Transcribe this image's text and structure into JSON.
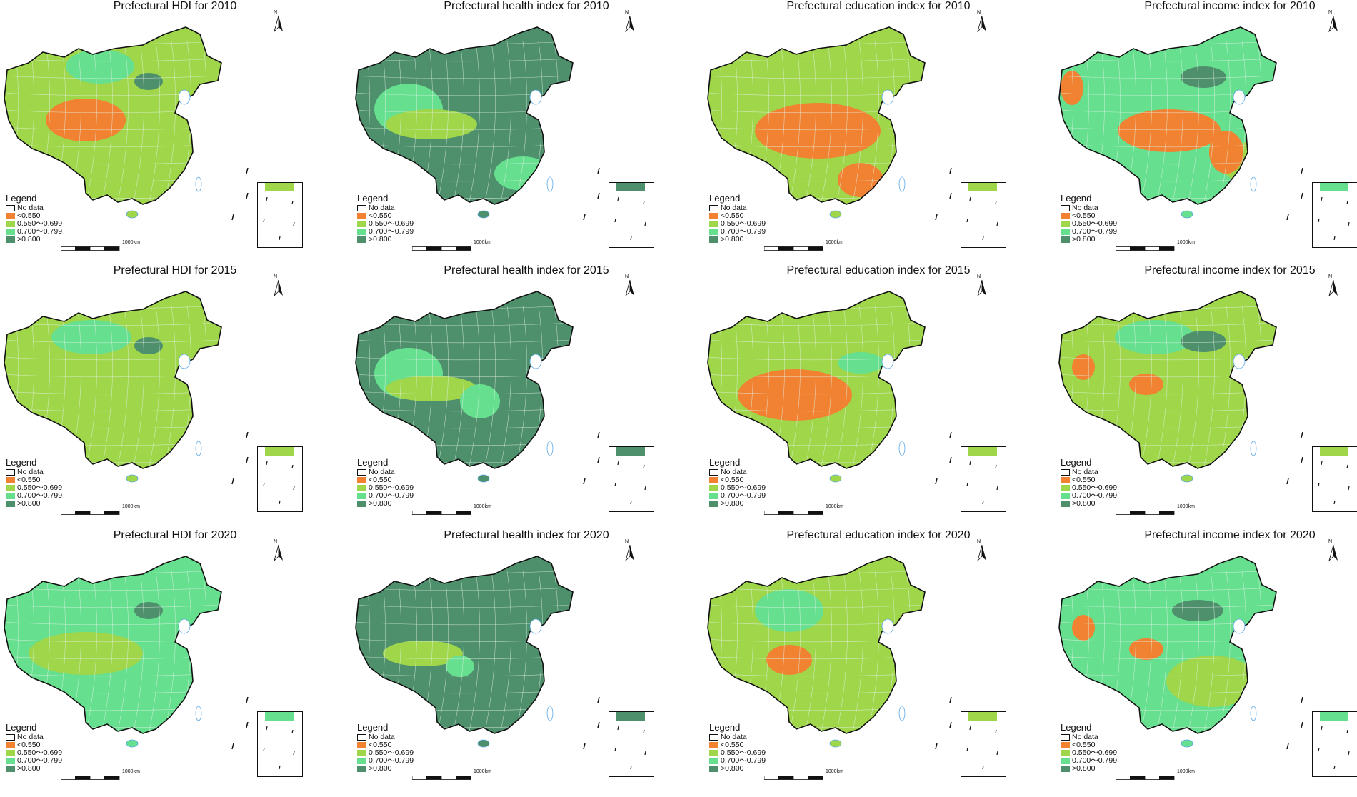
{
  "colors": {
    "no_data": "#ffffff",
    "lt_0550": "#f08232",
    "r_0550_0699": "#9fd64a",
    "r_0700_0799": "#66df8f",
    "gt_0800": "#4e8f6c",
    "border": "#111111",
    "prefecture_line": "#e7f3ea",
    "water": "#5aa6e6"
  },
  "legend": {
    "title": "Legend",
    "items": [
      {
        "label": "No data",
        "color_key": "no_data"
      },
      {
        "label": "<0.550",
        "color_key": "lt_0550"
      },
      {
        "label": "0.550～0.699",
        "color_key": "r_0550_0699"
      },
      {
        "label": "0.700～0.799",
        "color_key": "r_0700_0799"
      },
      {
        "label": ">0.800",
        "color_key": "gt_0800"
      }
    ]
  },
  "scale_bar_label": "1000km",
  "north_label": "N",
  "panels": [
    {
      "title": "Prefectural HDI for 2010",
      "base": "r_0550_0699",
      "blobs": [
        [
          "lt_0550",
          0.3,
          0.5,
          0.14,
          0.1
        ],
        [
          "r_0700_0799",
          0.35,
          0.25,
          0.12,
          0.08
        ],
        [
          "gt_0800",
          0.52,
          0.32,
          0.05,
          0.04
        ],
        [
          "r_0700_0799",
          0.8,
          0.55,
          0.07,
          0.18
        ]
      ]
    },
    {
      "title": "Prefectural health index for 2010",
      "base": "gt_0800",
      "blobs": [
        [
          "r_0700_0799",
          0.2,
          0.45,
          0.12,
          0.12
        ],
        [
          "r_0550_0699",
          0.28,
          0.52,
          0.16,
          0.07
        ],
        [
          "r_0700_0799",
          0.6,
          0.75,
          0.1,
          0.08
        ]
      ]
    },
    {
      "title": "Prefectural education index for 2010",
      "base": "r_0550_0699",
      "blobs": [
        [
          "lt_0550",
          0.4,
          0.55,
          0.22,
          0.13
        ],
        [
          "lt_0550",
          0.55,
          0.78,
          0.08,
          0.08
        ],
        [
          "r_0700_0799",
          0.85,
          0.4,
          0.05,
          0.08
        ]
      ]
    },
    {
      "title": "Prefectural income index for 2010",
      "base": "r_0700_0799",
      "blobs": [
        [
          "lt_0550",
          0.4,
          0.55,
          0.18,
          0.1
        ],
        [
          "lt_0550",
          0.06,
          0.35,
          0.04,
          0.08
        ],
        [
          "gt_0800",
          0.52,
          0.3,
          0.08,
          0.05
        ],
        [
          "r_0550_0699",
          0.7,
          0.7,
          0.12,
          0.1
        ],
        [
          "lt_0550",
          0.6,
          0.65,
          0.06,
          0.1
        ]
      ]
    },
    {
      "title": "Prefectural HDI for 2015",
      "base": "r_0550_0699",
      "blobs": [
        [
          "r_0700_0799",
          0.32,
          0.28,
          0.14,
          0.08
        ],
        [
          "r_0700_0799",
          0.8,
          0.55,
          0.07,
          0.15
        ],
        [
          "gt_0800",
          0.52,
          0.32,
          0.05,
          0.04
        ]
      ]
    },
    {
      "title": "Prefectural health index for 2015",
      "base": "gt_0800",
      "blobs": [
        [
          "r_0700_0799",
          0.2,
          0.45,
          0.12,
          0.12
        ],
        [
          "r_0550_0699",
          0.28,
          0.52,
          0.16,
          0.06
        ],
        [
          "r_0700_0799",
          0.45,
          0.58,
          0.07,
          0.08
        ]
      ]
    },
    {
      "title": "Prefectural education index for 2015",
      "base": "r_0550_0699",
      "blobs": [
        [
          "lt_0550",
          0.32,
          0.55,
          0.2,
          0.12
        ],
        [
          "r_0700_0799",
          0.55,
          0.4,
          0.08,
          0.05
        ]
      ]
    },
    {
      "title": "Prefectural income index for 2015",
      "base": "r_0550_0699",
      "blobs": [
        [
          "r_0700_0799",
          0.35,
          0.28,
          0.14,
          0.08
        ],
        [
          "lt_0550",
          0.1,
          0.42,
          0.04,
          0.06
        ],
        [
          "lt_0550",
          0.32,
          0.5,
          0.06,
          0.05
        ],
        [
          "gt_0800",
          0.52,
          0.3,
          0.08,
          0.05
        ],
        [
          "r_0700_0799",
          0.8,
          0.55,
          0.07,
          0.14
        ]
      ]
    },
    {
      "title": "Prefectural HDI for 2020",
      "base": "r_0700_0799",
      "blobs": [
        [
          "r_0550_0699",
          0.3,
          0.52,
          0.2,
          0.1
        ],
        [
          "gt_0800",
          0.52,
          0.32,
          0.05,
          0.04
        ]
      ]
    },
    {
      "title": "Prefectural health index for 2020",
      "base": "gt_0800",
      "blobs": [
        [
          "r_0550_0699",
          0.25,
          0.52,
          0.14,
          0.06
        ],
        [
          "r_0700_0799",
          0.38,
          0.58,
          0.05,
          0.05
        ]
      ]
    },
    {
      "title": "Prefectural education index for 2020",
      "base": "r_0550_0699",
      "blobs": [
        [
          "r_0700_0799",
          0.3,
          0.32,
          0.12,
          0.1
        ],
        [
          "lt_0550",
          0.3,
          0.55,
          0.08,
          0.07
        ]
      ]
    },
    {
      "title": "Prefectural income index for 2020",
      "base": "r_0700_0799",
      "blobs": [
        [
          "lt_0550",
          0.1,
          0.4,
          0.04,
          0.06
        ],
        [
          "lt_0550",
          0.32,
          0.5,
          0.06,
          0.05
        ],
        [
          "gt_0800",
          0.5,
          0.32,
          0.09,
          0.05
        ],
        [
          "r_0550_0699",
          0.55,
          0.65,
          0.16,
          0.12
        ]
      ]
    }
  ]
}
